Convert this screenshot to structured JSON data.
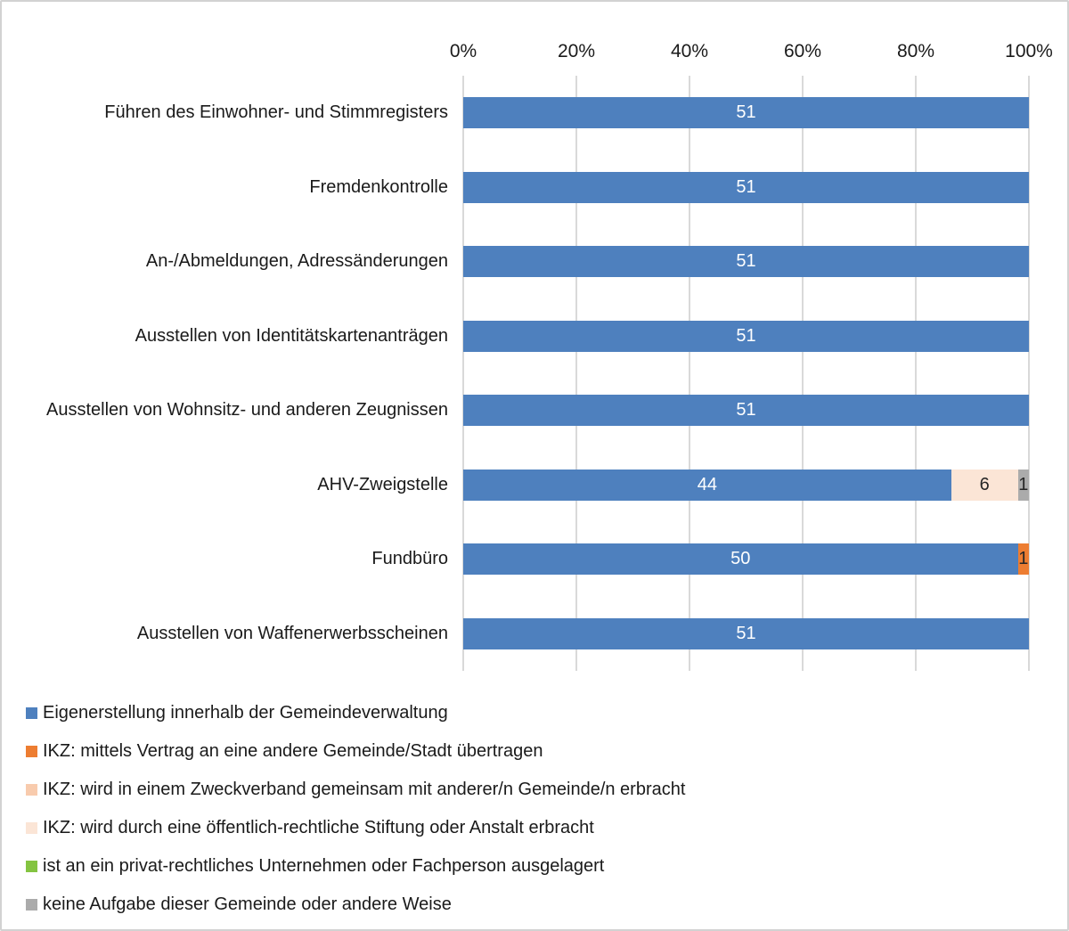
{
  "chart_data": {
    "type": "bar",
    "orientation": "horizontal",
    "stacked": true,
    "title": "",
    "xlabel": "",
    "ylabel": "",
    "axis_position": "top",
    "axis_ticks": [
      "0%",
      "20%",
      "40%",
      "60%",
      "80%",
      "100%"
    ],
    "axis_range_percent": [
      0,
      100
    ],
    "total_per_row": 51,
    "grid": true,
    "gridline_color": "#d9d9d9",
    "legend_position": "bottom-left",
    "categories": [
      "Führen des Einwohner- und Stimmregisters",
      "Fremdenkontrolle",
      "An-/Abmeldungen, Adressänderungen",
      "Ausstellen von Identitätskartenanträgen",
      "Ausstellen von Wohnsitz- und anderen Zeugnissen",
      "AHV-Zweigstelle",
      "Fundbüro",
      "Ausstellen von Waffenerwerbsscheinen"
    ],
    "series": [
      {
        "name": "Eigenerstellung innerhalb der Gemeindeverwaltung",
        "color": "#4e80be",
        "label_color": "#ffffff",
        "values": [
          51,
          51,
          51,
          51,
          51,
          44,
          50,
          51
        ]
      },
      {
        "name": "IKZ: mittels Vertrag an eine andere Gemeinde/Stadt übertragen",
        "color": "#ed7d31",
        "label_color": "#262626",
        "values": [
          0,
          0,
          0,
          0,
          0,
          0,
          1,
          0
        ]
      },
      {
        "name": "IKZ: wird in einem Zweckverband gemeinsam mit anderer/n Gemeinde/n erbracht",
        "color": "#f8cbad",
        "label_color": "#262626",
        "values": [
          0,
          0,
          0,
          0,
          0,
          0,
          0,
          0
        ]
      },
      {
        "name": "IKZ: wird durch eine öffentlich-rechtliche Stiftung oder Anstalt erbracht",
        "color": "#fbe5d6",
        "label_color": "#262626",
        "values": [
          0,
          0,
          0,
          0,
          0,
          6,
          0,
          0
        ]
      },
      {
        "name": "ist an ein privat-rechtliches Unternehmen oder Fachperson ausgelagert",
        "color": "#84c441",
        "label_color": "#262626",
        "values": [
          0,
          0,
          0,
          0,
          0,
          0,
          0,
          0
        ]
      },
      {
        "name": "keine Aufgabe dieser Gemeinde oder andere Weise",
        "color": "#ababab",
        "label_color": "#262626",
        "values": [
          0,
          0,
          0,
          0,
          0,
          1,
          0,
          0
        ]
      }
    ]
  }
}
